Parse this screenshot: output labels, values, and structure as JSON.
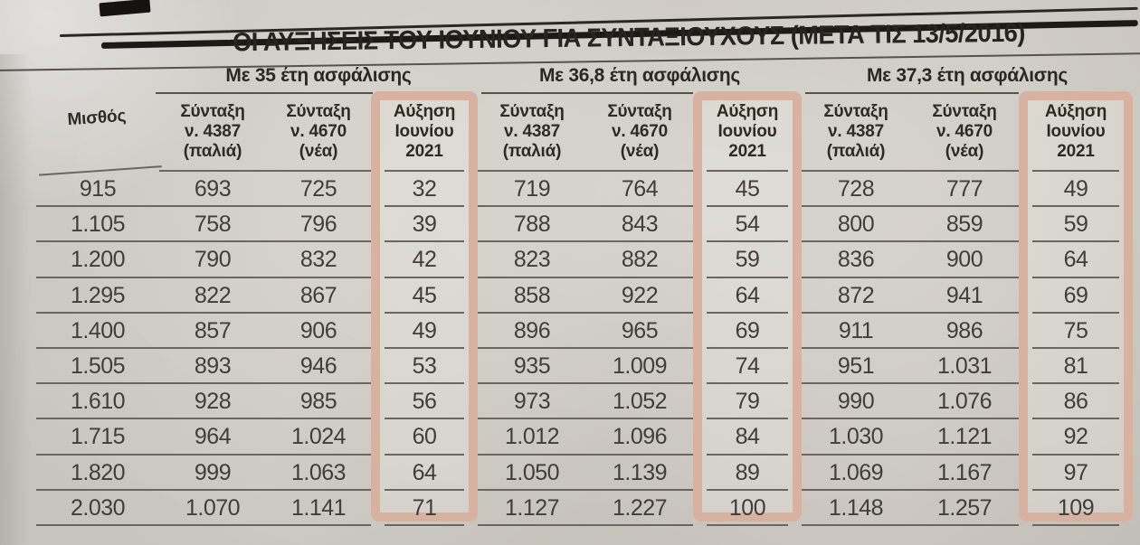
{
  "title": "ΟΙ ΑΥΞΗΣΕΙΣ ΤΟΥ ΙΟΥΝΙΟΥ ΓΙΑ ΣΥΝΤΑΞΙΟΥΧΟΥΣ (ΜΕΤΑ ΤΙΣ 13/5/2016)",
  "table": {
    "salary_header": "Μισθός",
    "group_headers": [
      "Με 35 έτη ασφάλισης",
      "Με 36,8 έτη ασφάλισης",
      "Με 37,3 έτη ασφάλισης"
    ],
    "sub_headers": {
      "pension_old": [
        "Σύνταξη",
        "ν. 4387",
        "(παλιά)"
      ],
      "pension_new": [
        "Σύνταξη",
        "ν. 4670",
        "(νέα)"
      ],
      "increase": [
        "Αύξηση",
        "Ιουνίου",
        "2021"
      ]
    },
    "rows": [
      {
        "salary": "915",
        "values": [
          "693",
          "725",
          "32",
          "719",
          "764",
          "45",
          "728",
          "777",
          "49"
        ]
      },
      {
        "salary": "1.105",
        "values": [
          "758",
          "796",
          "39",
          "788",
          "843",
          "54",
          "800",
          "859",
          "59"
        ]
      },
      {
        "salary": "1.200",
        "values": [
          "790",
          "832",
          "42",
          "823",
          "882",
          "59",
          "836",
          "900",
          "64"
        ]
      },
      {
        "salary": "1.295",
        "values": [
          "822",
          "867",
          "45",
          "858",
          "922",
          "64",
          "872",
          "941",
          "69"
        ]
      },
      {
        "salary": "1.400",
        "values": [
          "857",
          "906",
          "49",
          "896",
          "965",
          "69",
          "911",
          "986",
          "75"
        ]
      },
      {
        "salary": "1.505",
        "values": [
          "893",
          "946",
          "53",
          "935",
          "1.009",
          "74",
          "951",
          "1.031",
          "81"
        ]
      },
      {
        "salary": "1.610",
        "values": [
          "928",
          "985",
          "56",
          "973",
          "1.052",
          "79",
          "990",
          "1.076",
          "86"
        ]
      },
      {
        "salary": "1.715",
        "values": [
          "964",
          "1.024",
          "60",
          "1.012",
          "1.096",
          "84",
          "1.030",
          "1.121",
          "92"
        ]
      },
      {
        "salary": "1.820",
        "values": [
          "999",
          "1.063",
          "64",
          "1.050",
          "1.139",
          "89",
          "1.069",
          "1.167",
          "97"
        ]
      },
      {
        "salary": "2.030",
        "values": [
          "1.070",
          "1.141",
          "71",
          "1.127",
          "1.227",
          "100",
          "1.148",
          "1.257",
          "109"
        ]
      }
    ]
  },
  "colors": {
    "paper": "#d6d2cc",
    "ink": "#262320",
    "table_text": "#413d38",
    "line": "#6b6660",
    "highlight_frame": "#d9b1a0"
  }
}
